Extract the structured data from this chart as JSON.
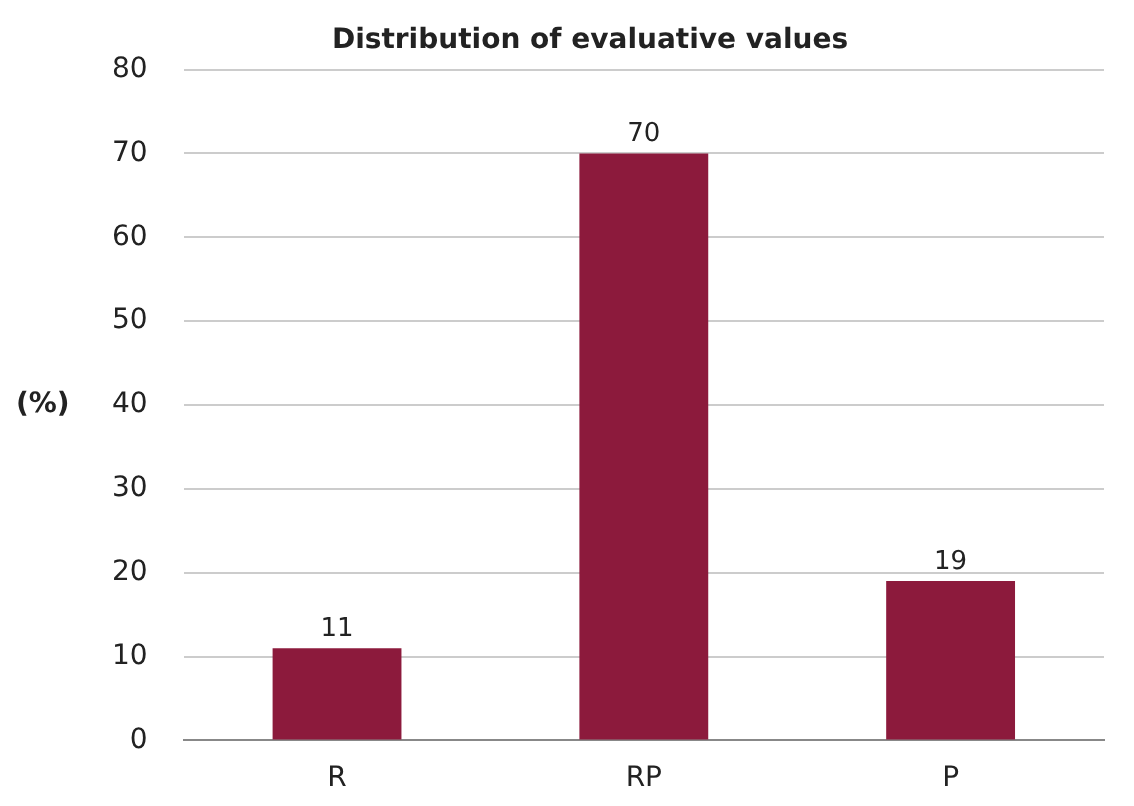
{
  "chart_data": {
    "type": "bar",
    "title": "Distribution of evaluative values",
    "ylabel": "(%)",
    "categories": [
      "R",
      "RP",
      "P"
    ],
    "values": [
      11,
      70,
      19
    ],
    "color": "#8c1a3c",
    "ylim": [
      0,
      80
    ],
    "yticks": [
      0,
      10,
      20,
      30,
      40,
      50,
      60,
      70,
      80
    ],
    "grid": "y",
    "legend": false,
    "data_labels": true
  }
}
